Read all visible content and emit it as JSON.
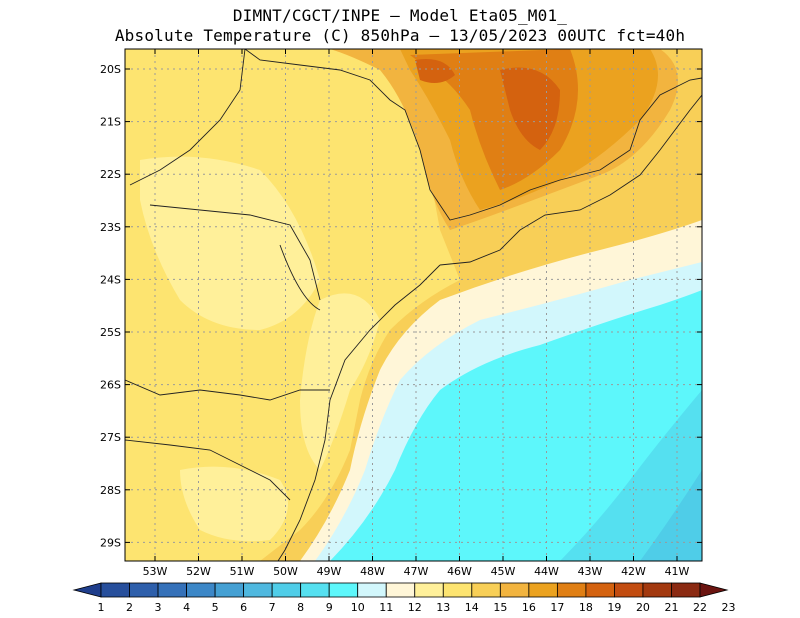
{
  "title_line1": "DIMNT/CGCT/INPE —  Model Eta05_M01_",
  "title_line2": "Absolute Temperature (C) 850hPa —  13/05/2023 00UTC fct=40h",
  "lat_labels": [
    "20S",
    "21S",
    "22S",
    "23S",
    "24S",
    "25S",
    "26S",
    "27S",
    "28S",
    "29S"
  ],
  "lon_labels": [
    "53W",
    "52W",
    "51W",
    "50W",
    "49W",
    "48W",
    "47W",
    "46W",
    "45W",
    "44W",
    "43W",
    "42W",
    "41W"
  ],
  "colorbar": {
    "labels": [
      "1",
      "2",
      "3",
      "4",
      "5",
      "6",
      "7",
      "8",
      "9",
      "10",
      "11",
      "12",
      "13",
      "14",
      "15",
      "16",
      "17",
      "18",
      "19",
      "20",
      "21",
      "22",
      "23"
    ],
    "colors": [
      "#1f3e8c",
      "#274f9c",
      "#2e5fab",
      "#3571b9",
      "#3c87c7",
      "#45a0d3",
      "#4fb8df",
      "#4fcde8",
      "#55e0f0",
      "#5df7fb",
      "#d2f7fc",
      "#fff6d8",
      "#fff09a",
      "#fde470",
      "#f8cf57",
      "#f2b43f",
      "#eba21f",
      "#e07f14",
      "#d4620f",
      "#c24c10",
      "#a3390f",
      "#8b2a12",
      "#6b1410"
    ]
  }
}
